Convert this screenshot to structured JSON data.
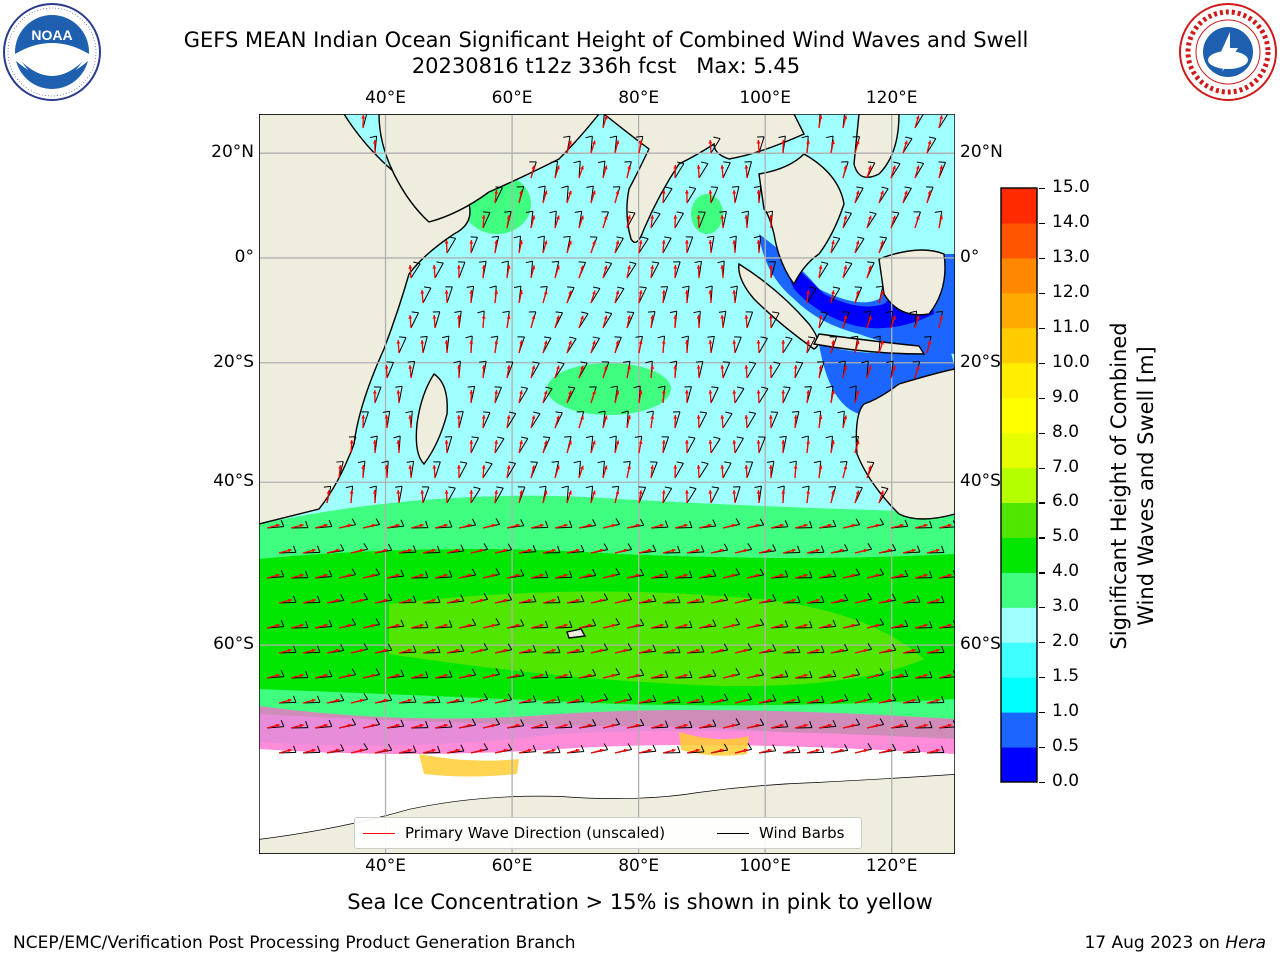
{
  "header": {
    "title_line1": "GEFS MEAN Indian Ocean Significant Height of Combined Wind Waves and Swell",
    "title_line2": "20230816 t12z 336h fcst   Max: 5.45"
  },
  "logos": {
    "left": {
      "name": "noaa-logo",
      "text": "NOAA",
      "ring_text": "NATIONAL OCEANIC AND ATMOSPHERIC ADMINISTRATION · U.S. DEPARTMENT OF COMMERCE"
    },
    "right": {
      "name": "nws-logo",
      "ring_text": "NATIONAL WEATHER SERVICE"
    }
  },
  "map": {
    "projection": "Mercator",
    "lon_range": [
      20,
      130
    ],
    "lat_range": [
      -75,
      27
    ],
    "lon_ticks": [
      "40°E",
      "60°E",
      "80°E",
      "100°E",
      "120°E"
    ],
    "lat_ticks": [
      "20°N",
      "0°",
      "20°S",
      "40°S",
      "60°S"
    ],
    "gridlines": true,
    "colors": {
      "land": "#efedde",
      "coast": "#000000",
      "barb": "#000000",
      "arrow": "#ff0000",
      "grid": "#b0b0b0"
    }
  },
  "legend": {
    "placement": "bottom-center",
    "items": [
      {
        "label": "Primary Wave Direction (unscaled)",
        "color": "#ff0000"
      },
      {
        "label": "Wind Barbs",
        "color": "#000000"
      }
    ]
  },
  "colorbar": {
    "label_line1": "Significant Height of Combined",
    "label_line2": "Wind Waves and Swell [m]",
    "ticks": [
      "15.0",
      "14.0",
      "13.0",
      "12.0",
      "11.0",
      "10.0",
      "9.0",
      "8.0",
      "7.0",
      "6.0",
      "5.0",
      "4.0",
      "3.0",
      "2.0",
      "1.5",
      "1.0",
      "0.5",
      "0.0"
    ],
    "colors_bottom_to_top": [
      "#0000ff",
      "#1a66ff",
      "#00ffff",
      "#40ffff",
      "#a0ffff",
      "#40ff80",
      "#00e600",
      "#50e600",
      "#b4ff00",
      "#e6ff00",
      "#ffff00",
      "#ffee00",
      "#ffcc00",
      "#ffaa00",
      "#ff8800",
      "#ff5500",
      "#ff2a00",
      "#ff0000"
    ]
  },
  "subtitle": "Sea Ice Concentration > 15% is shown in pink to yellow",
  "footer": {
    "left": "NCEP/EMC/Verification Post Processing Product Generation Branch",
    "date": "17 Aug 2023 on ",
    "machine": "Hera"
  },
  "chart_data": {
    "type": "heatmap",
    "variable": "Significant Height of Combined Wind Waves and Swell",
    "units": "m",
    "max": 5.45,
    "value_levels": [
      0.0,
      0.5,
      1.0,
      1.5,
      2.0,
      3.0,
      4.0,
      5.0,
      6.0,
      7.0,
      8.0,
      9.0,
      10.0,
      11.0,
      12.0,
      13.0,
      14.0,
      15.0
    ]
  }
}
